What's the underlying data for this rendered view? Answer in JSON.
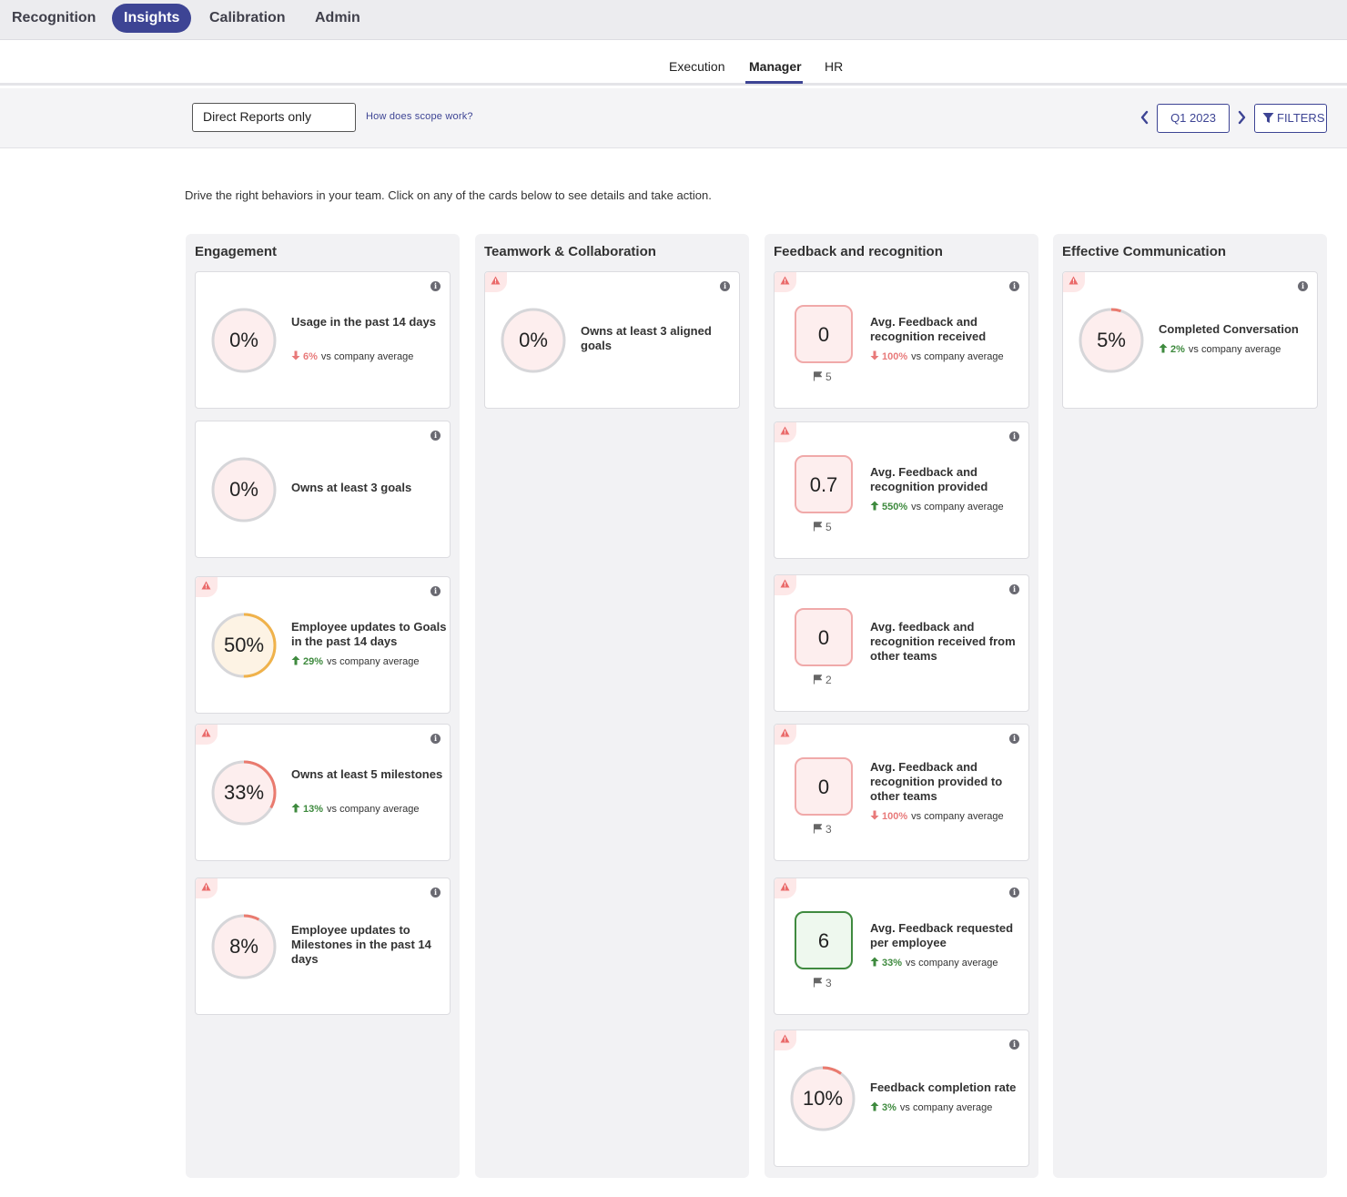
{
  "topnav": {
    "tabs": [
      {
        "label": "Recognition"
      },
      {
        "label": "Insights"
      },
      {
        "label": "Calibration"
      },
      {
        "label": "Admin"
      }
    ]
  },
  "subnav": {
    "tabs": [
      {
        "label": "Execution"
      },
      {
        "label": "Manager"
      },
      {
        "label": "HR"
      }
    ]
  },
  "filters": {
    "scope": "Direct Reports only",
    "scope_help": "How does scope work?",
    "period": "Q1 2023",
    "filters_label": "FILTERS"
  },
  "intro": "Drive the right behaviors in your team. Click on any of the cards below to see details and take action.",
  "compare_text": "vs company average",
  "colors": {
    "brand": "#3d4494",
    "up": "#3e8a3e",
    "down": "#e87a7a",
    "ring_red": "#ea7a6e",
    "ring_orange": "#f0b24a"
  },
  "columns": [
    {
      "title": "Engagement",
      "cards": [
        {
          "value": "0%",
          "percent": 0,
          "title": "Usage in the past 14 days",
          "delta": "6%",
          "direction": "down",
          "warning": false
        },
        {
          "value": "0%",
          "percent": 0,
          "title": "Owns at least 3 goals",
          "warning": false
        },
        {
          "value": "50%",
          "percent": 50,
          "title": "Employee updates to Goals in the past 14 days",
          "delta": "29%",
          "direction": "up",
          "warning": true
        },
        {
          "value": "33%",
          "percent": 33,
          "title": "Owns at least 5 milestones",
          "delta": "13%",
          "direction": "up",
          "warning": true
        },
        {
          "value": "8%",
          "percent": 8,
          "title": "Employee updates to Milestones in the past 14 days",
          "warning": true
        }
      ]
    },
    {
      "title": "Teamwork & Collaboration",
      "cards": [
        {
          "value": "0%",
          "percent": 0,
          "title": "Owns at least 3 aligned goals",
          "warning": true
        }
      ]
    },
    {
      "title": "Feedback and recognition",
      "cards": [
        {
          "value": "0",
          "flag": "5",
          "title": "Avg. Feedback and recognition received",
          "delta": "100%",
          "direction": "down",
          "warning": true,
          "style": "red"
        },
        {
          "value": "0.7",
          "flag": "5",
          "title": "Avg. Feedback and recognition provided",
          "delta": "550%",
          "direction": "up",
          "warning": true,
          "style": "red"
        },
        {
          "value": "0",
          "flag": "2",
          "title": "Avg. feedback and recognition received from other teams",
          "warning": true,
          "style": "red"
        },
        {
          "value": "0",
          "flag": "3",
          "title": "Avg. Feedback and recognition provided to other teams",
          "delta": "100%",
          "direction": "down",
          "warning": true,
          "style": "red"
        },
        {
          "value": "6",
          "flag": "3",
          "title": "Avg. Feedback requested per employee",
          "delta": "33%",
          "direction": "up",
          "warning": true,
          "style": "green"
        },
        {
          "value": "10%",
          "percent": 10,
          "title": "Feedback completion rate",
          "delta": "3%",
          "direction": "up",
          "warning": true
        }
      ]
    },
    {
      "title": "Effective Communication",
      "cards": [
        {
          "value": "5%",
          "percent": 5,
          "title": "Completed Conversation",
          "delta": "2%",
          "direction": "up",
          "warning": true
        }
      ]
    }
  ]
}
